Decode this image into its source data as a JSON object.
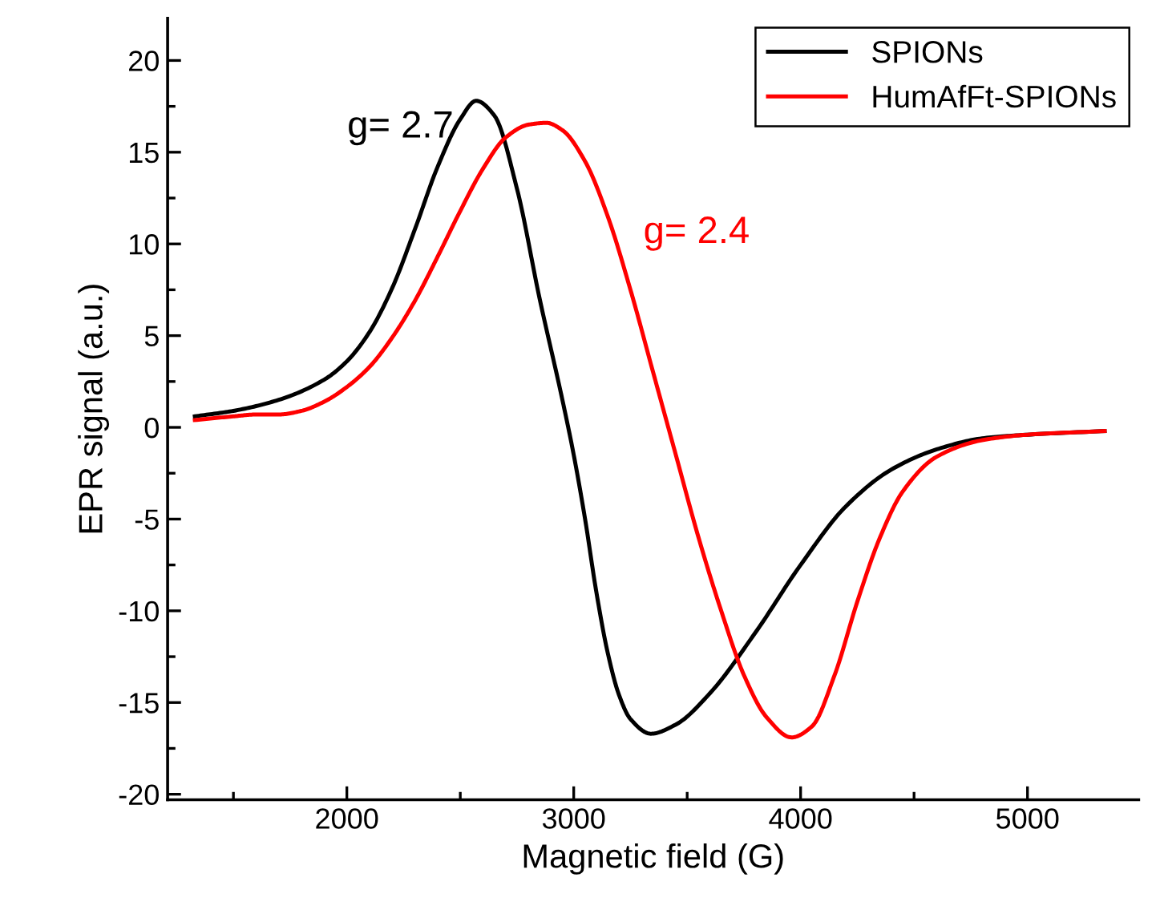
{
  "chart_data": {
    "type": "line",
    "xlabel": "Magnetic field (G)",
    "ylabel": "EPR signal (a.u.)",
    "xlim": [
      1210,
      5490
    ],
    "ylim": [
      -20.3,
      22.3
    ],
    "xticks": [
      2000,
      3000,
      4000,
      5000
    ],
    "yticks": [
      -20,
      -15,
      -10,
      -5,
      0,
      5,
      10,
      15,
      20
    ],
    "grid": false,
    "legend": "top right",
    "marker": "none",
    "line_style": "solid",
    "annotations": [
      "g= 2.7",
      "g= 2.4"
    ],
    "series": [
      {
        "name": "SPIONs",
        "color": "#000000",
        "x": [
          1330,
          1500,
          1700,
          1900,
          2000,
          2100,
          2200,
          2300,
          2400,
          2500,
          2570,
          2650,
          2750,
          2850,
          2950,
          3000,
          3050,
          3100,
          3150,
          3200,
          3250,
          3340,
          3450,
          3600,
          3800,
          4000,
          4200,
          4400,
          4600,
          4800,
          5000,
          5340
        ],
        "values": [
          0.6,
          0.9,
          1.5,
          2.6,
          3.6,
          5.2,
          7.6,
          10.8,
          14.2,
          16.8,
          17.8,
          17.0,
          13.0,
          7.0,
          1.5,
          -1.5,
          -5.0,
          -9.0,
          -12.3,
          -14.6,
          -15.9,
          -16.7,
          -16.2,
          -14.5,
          -11.2,
          -7.5,
          -4.3,
          -2.3,
          -1.2,
          -0.6,
          -0.4,
          -0.2
        ]
      },
      {
        "name": "HumAfFt-SPIONs",
        "color": "#ff0000",
        "x": [
          1330,
          1500,
          1600,
          1700,
          1800,
          1900,
          2000,
          2100,
          2200,
          2300,
          2400,
          2500,
          2600,
          2700,
          2800,
          2880,
          2950,
          3050,
          3150,
          3250,
          3350,
          3450,
          3550,
          3650,
          3750,
          3850,
          3960,
          4050,
          4150,
          4250,
          4350,
          4450,
          4600,
          4800,
          5000,
          5340
        ],
        "values": [
          0.4,
          0.6,
          0.7,
          0.7,
          0.9,
          1.4,
          2.2,
          3.3,
          4.9,
          6.9,
          9.3,
          11.8,
          14.1,
          15.8,
          16.5,
          16.6,
          16.2,
          14.5,
          11.5,
          7.5,
          3.0,
          -1.5,
          -6.0,
          -10.0,
          -13.5,
          -15.8,
          -16.9,
          -16.3,
          -13.5,
          -9.5,
          -6.0,
          -3.5,
          -1.6,
          -0.7,
          -0.4,
          -0.2
        ]
      }
    ]
  }
}
